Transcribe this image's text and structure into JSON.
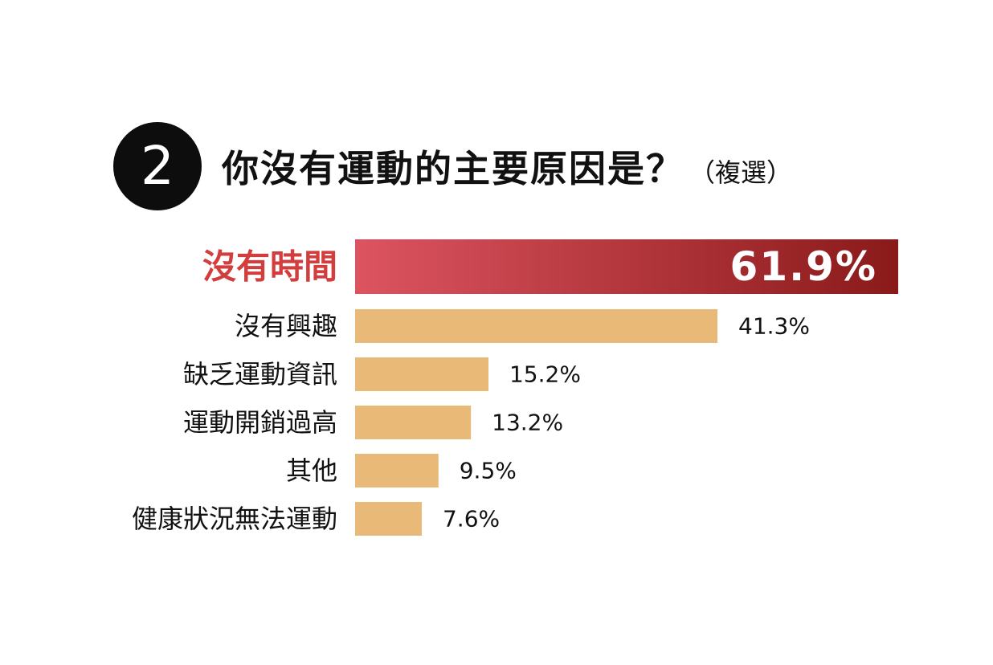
{
  "header": {
    "badge_number": "2",
    "title": "你沒有運動的主要原因是？",
    "subtitle": "（複選）"
  },
  "colors": {
    "highlight_start": "#dc5460",
    "highlight_end": "#8a1a1a",
    "highlight_label": "#d23d3d",
    "bar": "#e8b977",
    "text": "#111111",
    "badge": "#0d0d0d"
  },
  "chart_data": {
    "type": "bar",
    "orientation": "horizontal",
    "title": "你沒有運動的主要原因是？（複選）",
    "categories": [
      "沒有時間",
      "沒有興趣",
      "缺乏運動資訊",
      "運動開銷過高",
      "其他",
      "健康狀況無法運動"
    ],
    "values": [
      61.9,
      41.3,
      15.2,
      13.2,
      9.5,
      7.6
    ],
    "value_labels": [
      "61.9%",
      "41.3%",
      "15.2%",
      "13.2%",
      "9.5%",
      "7.6%"
    ],
    "unit": "%",
    "highlight_index": 0,
    "xlim": [
      0,
      61.9
    ],
    "grid": false,
    "legend": "none"
  }
}
